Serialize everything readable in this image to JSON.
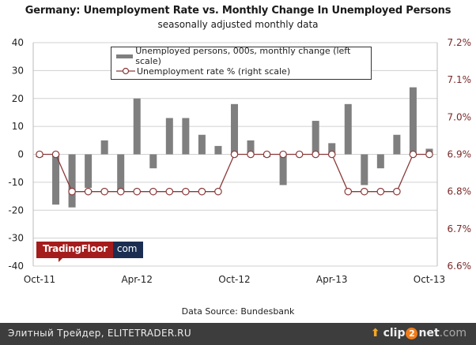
{
  "chart_data": {
    "type": "bar+line",
    "title": "Germany: Unemployment Rate vs. Monthly Change In Unemployed Persons",
    "subtitle": "seasonally adjusted monthly data",
    "source": "Data Source: Bundesbank",
    "x_tick_labels": [
      "Oct-11",
      "Apr-12",
      "Oct-12",
      "Apr-13",
      "Oct-13"
    ],
    "categories": [
      "Oct-11",
      "Nov-11",
      "Dec-11",
      "Jan-12",
      "Feb-12",
      "Mar-12",
      "Apr-12",
      "May-12",
      "Jun-12",
      "Jul-12",
      "Aug-12",
      "Sep-12",
      "Oct-12",
      "Nov-12",
      "Dec-12",
      "Jan-13",
      "Feb-13",
      "Mar-13",
      "Apr-13",
      "May-13",
      "Jun-13",
      "Jul-13",
      "Aug-13",
      "Sep-13",
      "Oct-13"
    ],
    "series": [
      {
        "name": "Unemployed persons, 000s, monthly change (left scale)",
        "type": "bar",
        "axis": "left",
        "color": "#7f7f7f",
        "values": [
          -1,
          -18,
          -19,
          -12,
          5,
          -13,
          20,
          -5,
          13,
          13,
          7,
          3,
          18,
          5,
          -1,
          -11,
          0,
          12,
          4,
          18,
          -11,
          -5,
          7,
          24,
          2
        ]
      },
      {
        "name": "Unemployment rate % (right scale)",
        "type": "line",
        "axis": "right",
        "color": "#8b3a3a",
        "values": [
          6.9,
          6.9,
          6.8,
          6.8,
          6.8,
          6.8,
          6.8,
          6.8,
          6.8,
          6.8,
          6.8,
          6.8,
          6.9,
          6.9,
          6.9,
          6.9,
          6.9,
          6.9,
          6.9,
          6.8,
          6.8,
          6.8,
          6.8,
          6.9,
          6.9
        ]
      }
    ],
    "left_axis": {
      "ylim": [
        -40,
        40
      ],
      "ticks": [
        "40",
        "30",
        "20",
        "10",
        "0",
        "-10",
        "-20",
        "-30",
        "-40"
      ]
    },
    "right_axis": {
      "ylim": [
        6.6,
        7.2
      ],
      "ticks": [
        "7.2%",
        "7.1%",
        "7.0%",
        "6.9%",
        "6.8%",
        "6.7%",
        "6.6%"
      ]
    },
    "grid": true,
    "legend_position": "top-center"
  },
  "logo": {
    "part1": "TradingFloor",
    "part2": "com"
  },
  "footer": {
    "left_text": "Элитный Трейдер, ELITETRADER.RU",
    "brand_a": "clip",
    "brand_two": "2",
    "brand_b": "net",
    "brand_dom": ".com"
  }
}
